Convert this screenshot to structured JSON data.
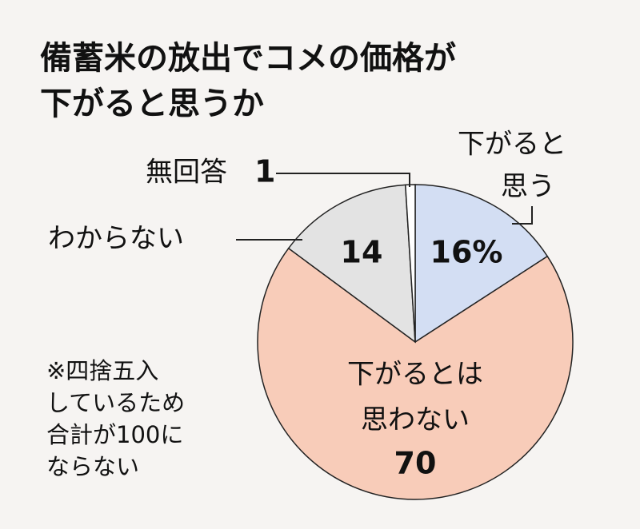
{
  "chart_data": {
    "type": "pie",
    "title": [
      "備蓄米の放出でコメの価格が",
      "下がると思うか"
    ],
    "categories": [
      [
        "下がると",
        "思う"
      ],
      [
        "下がるとは",
        "思わない"
      ],
      [
        "わからない"
      ],
      [
        "無回答"
      ]
    ],
    "values": [
      16,
      70,
      14,
      1
    ],
    "value_labels": [
      "16%",
      "70",
      "14",
      "1"
    ],
    "colors": [
      "#d3def3",
      "#f8ccb9",
      "#e3e3e3",
      "#ffffff"
    ],
    "note": [
      "※四捨五入",
      "しているため",
      "合計が100に",
      "ならない"
    ]
  }
}
